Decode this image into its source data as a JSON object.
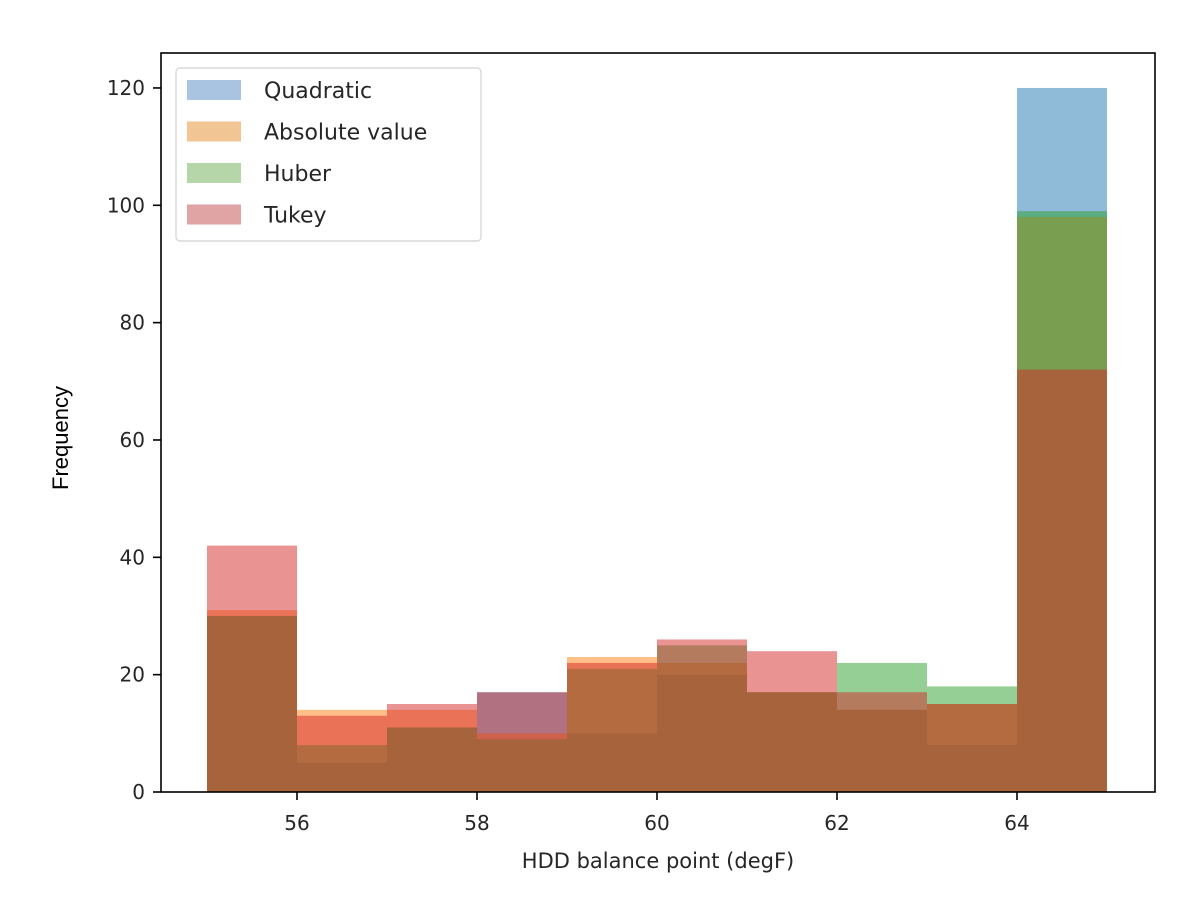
{
  "chart_data": {
    "type": "bar",
    "subtype": "overlapping_histogram",
    "title": "",
    "xlabel": "HDD balance point (degF)",
    "ylabel": "Frequency",
    "xlim": [
      54.5,
      65.5
    ],
    "ylim": [
      0,
      125
    ],
    "xticks": [
      56,
      58,
      60,
      62,
      64
    ],
    "yticks": [
      0,
      20,
      40,
      60,
      80,
      100,
      120
    ],
    "bin_edges": [
      55,
      56,
      57,
      58,
      59,
      60,
      61,
      62,
      63,
      64,
      65
    ],
    "grid": false,
    "legend_position": "upper left",
    "alpha": 0.5,
    "series": [
      {
        "name": "Quadratic",
        "color": "#1f77b4",
        "values": [
          30,
          5,
          11,
          17,
          10,
          20,
          17,
          14,
          8,
          120
        ]
      },
      {
        "name": "Absolute value",
        "color": "#ff7f0e",
        "values": [
          31,
          14,
          14,
          10,
          23,
          22,
          17,
          14,
          15,
          98
        ]
      },
      {
        "name": "Huber",
        "color": "#2ca02c",
        "values": [
          30,
          8,
          11,
          9,
          21,
          25,
          17,
          22,
          18,
          99
        ]
      },
      {
        "name": "Tukey",
        "color": "#d62728",
        "values": [
          42,
          13,
          15,
          17,
          22,
          26,
          24,
          17,
          15,
          72
        ]
      }
    ]
  },
  "legend": {
    "items": [
      {
        "label": "Quadratic",
        "swatch": "#a8c4e0"
      },
      {
        "label": "Absolute value",
        "swatch": "#f2c595"
      },
      {
        "label": "Huber",
        "swatch": "#b4d6a9"
      },
      {
        "label": "Tukey",
        "swatch": "#e0a4a4"
      }
    ]
  },
  "axes": {
    "xlabel": "HDD balance point (degF)",
    "ylabel": "Frequency",
    "xtick_labels": [
      "56",
      "58",
      "60",
      "62",
      "64"
    ],
    "ytick_labels": [
      "0",
      "20",
      "40",
      "60",
      "80",
      "100",
      "120"
    ]
  }
}
